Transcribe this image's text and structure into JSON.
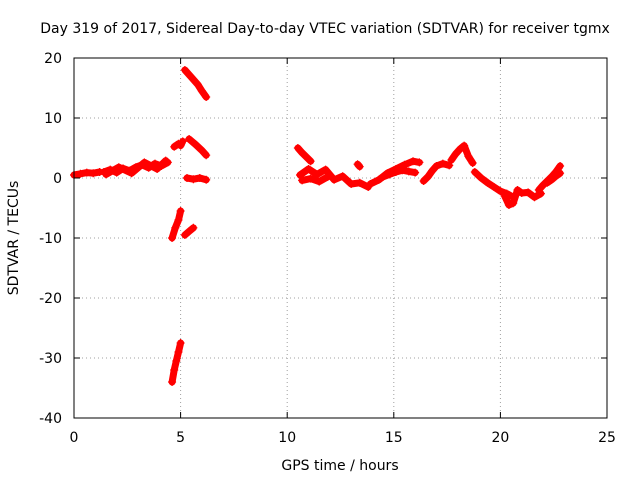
{
  "chart_data": {
    "type": "scatter",
    "title": "Day 319 of 2017, Sidereal Day-to-day VTEC variation (SDTVAR) for receiver tgmx",
    "xlabel": "GPS time / hours",
    "ylabel": "SDTVAR / TECUs",
    "xlim": [
      0,
      25
    ],
    "ylim": [
      -40,
      20
    ],
    "xticks": [
      0,
      5,
      10,
      15,
      20,
      25
    ],
    "yticks": [
      20,
      10,
      0,
      -10,
      -20,
      -30,
      -40
    ],
    "xtick_labels": [
      "0",
      "5",
      "10",
      "15",
      "20",
      "25"
    ],
    "ytick_labels": [
      "20",
      "10",
      "0",
      "-10",
      "-20",
      "-30",
      "-40"
    ],
    "grid": true,
    "marker": "plus",
    "colors": {
      "series": "#ff0000",
      "grid": "#a0a0a0",
      "axis": "#000000"
    },
    "series": [
      {
        "name": "SDTVAR",
        "segments": [
          {
            "x": [
              0.0,
              0.3,
              0.6,
              0.9,
              1.2
            ],
            "y": [
              0.5,
              0.7,
              0.9,
              0.8,
              1.0
            ]
          },
          {
            "x": [
              1.4,
              1.7,
              2.0,
              2.3,
              2.6,
              2.9,
              3.2,
              3.5,
              3.8,
              4.1,
              4.4
            ],
            "y": [
              1.0,
              1.4,
              0.9,
              1.6,
              1.2,
              1.8,
              2.2,
              1.7,
              2.4,
              2.0,
              2.6
            ]
          },
          {
            "x": [
              1.5,
              2.1,
              2.7,
              3.3,
              3.9,
              4.3
            ],
            "y": [
              0.6,
              1.8,
              0.8,
              2.6,
              1.5,
              2.9
            ]
          },
          {
            "x": [
              4.6,
              4.7,
              4.8,
              4.9,
              5.0
            ],
            "y": [
              -34.0,
              -32.0,
              -30.5,
              -29.0,
              -27.5
            ]
          },
          {
            "x": [
              4.6,
              4.75,
              4.9,
              5.0
            ],
            "y": [
              -10.0,
              -8.3,
              -7.0,
              -5.5
            ]
          },
          {
            "x": [
              5.2,
              5.4,
              5.6
            ],
            "y": [
              -9.5,
              -8.9,
              -8.3
            ]
          },
          {
            "x": [
              4.7,
              4.9,
              5.0,
              5.1
            ],
            "y": [
              5.2,
              5.7,
              5.4,
              6.1
            ]
          },
          {
            "x": [
              5.4,
              5.7,
              6.0,
              6.2
            ],
            "y": [
              6.5,
              5.6,
              4.6,
              3.8
            ]
          },
          {
            "x": [
              5.3,
              5.6,
              5.9,
              6.2
            ],
            "y": [
              0.0,
              -0.2,
              0.0,
              -0.3
            ]
          },
          {
            "x": [
              5.2,
              5.5,
              5.8,
              6.0,
              6.2
            ],
            "y": [
              18.0,
              16.8,
              15.6,
              14.5,
              13.5
            ]
          },
          {
            "x": [
              10.5,
              10.7,
              10.9,
              11.1
            ],
            "y": [
              5.0,
              4.2,
              3.5,
              2.8
            ]
          },
          {
            "x": [
              10.6,
              11.0,
              11.4,
              11.8,
              12.2,
              12.6,
              13.0,
              13.4,
              13.8
            ],
            "y": [
              0.5,
              1.5,
              0.6,
              1.4,
              -0.3,
              0.3,
              -1.0,
              -0.8,
              -1.5
            ]
          },
          {
            "x": [
              10.7,
              11.1,
              11.5,
              11.9
            ],
            "y": [
              -0.4,
              -0.1,
              -0.6,
              0.2
            ]
          },
          {
            "x": [
              13.3,
              13.4
            ],
            "y": [
              2.3,
              1.9
            ]
          },
          {
            "x": [
              13.9,
              14.3,
              14.7,
              15.1,
              15.5,
              15.9,
              16.2
            ],
            "y": [
              -1.0,
              -0.3,
              0.8,
              1.5,
              2.2,
              2.8,
              2.6
            ]
          },
          {
            "x": [
              14.5,
              14.8,
              15.1,
              15.4,
              15.7,
              16.0
            ],
            "y": [
              0.2,
              0.6,
              1.0,
              1.3,
              1.1,
              0.9
            ]
          },
          {
            "x": [
              16.4,
              16.6,
              16.8,
              17.0,
              17.3,
              17.6
            ],
            "y": [
              -0.5,
              0.2,
              1.2,
              2.0,
              2.4,
              2.1
            ]
          },
          {
            "x": [
              17.7,
              17.9,
              18.1,
              18.3,
              18.5,
              18.7
            ],
            "y": [
              3.0,
              4.0,
              4.8,
              5.4,
              3.6,
              2.5
            ]
          },
          {
            "x": [
              18.8,
              19.1,
              19.4,
              19.7,
              20.0,
              20.3,
              20.6
            ],
            "y": [
              1.0,
              0.0,
              -0.8,
              -1.5,
              -2.2,
              -2.6,
              -3.2
            ]
          },
          {
            "x": [
              20.2,
              20.4,
              20.6,
              20.8,
              21.0,
              21.3,
              21.6,
              21.9
            ],
            "y": [
              -3.0,
              -4.5,
              -4.2,
              -2.0,
              -2.5,
              -2.4,
              -3.2,
              -2.6
            ]
          },
          {
            "x": [
              21.8,
              22.0,
              22.2,
              22.4,
              22.6,
              22.8
            ],
            "y": [
              -2.0,
              -1.2,
              -0.5,
              0.2,
              1.0,
              2.0
            ]
          },
          {
            "x": [
              22.2,
              22.4,
              22.6,
              22.8
            ],
            "y": [
              -0.8,
              -0.3,
              0.3,
              0.8
            ]
          }
        ]
      }
    ]
  }
}
